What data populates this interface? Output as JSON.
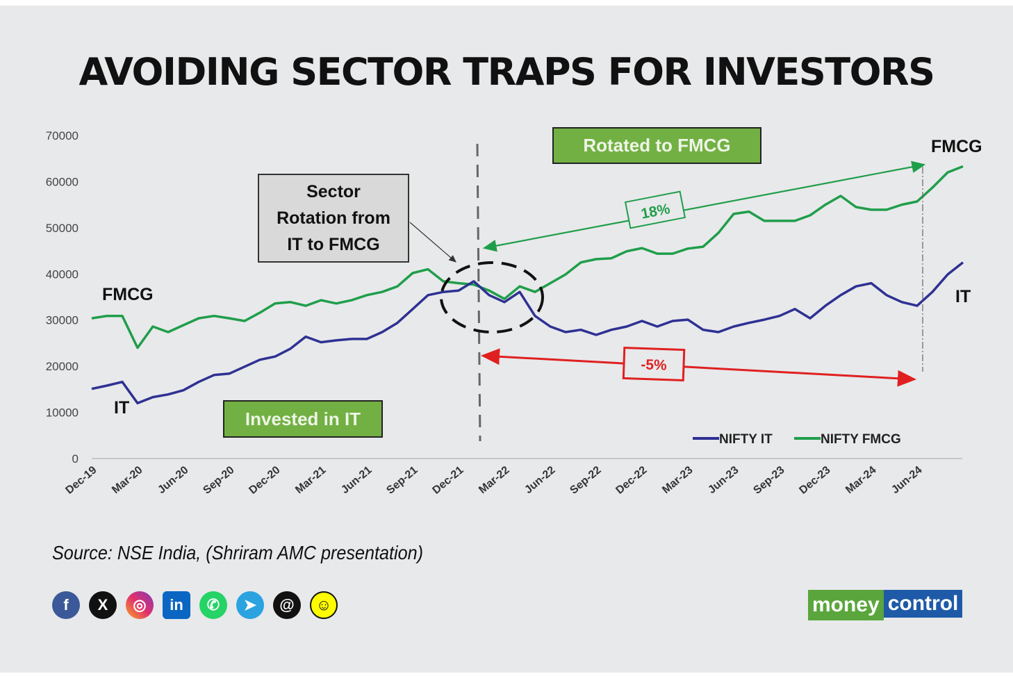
{
  "title": "AVOIDING SECTOR TRAPS FOR INVESTORS",
  "source": "Source: NSE India, (Shriram AMC presentation)",
  "brand": {
    "part1": "money",
    "part2": "control"
  },
  "social_icons": [
    "facebook-icon",
    "x-icon",
    "instagram-icon",
    "linkedin-icon",
    "whatsapp-icon",
    "telegram-icon",
    "threads-icon",
    "snapchat-icon"
  ],
  "annotations": {
    "rotated": "Rotated to FMCG",
    "invested": "Invested in IT",
    "rotation_box": [
      "Sector",
      "Rotation from",
      "IT to FMCG"
    ],
    "fmcg_gain": "18%",
    "it_loss": "-5%",
    "fmcg_left": "FMCG",
    "it_left": "IT",
    "fmcg_right": "FMCG",
    "it_right": "IT"
  },
  "chart_data": {
    "type": "line",
    "title": "AVOIDING SECTOR TRAPS FOR INVESTORS",
    "xlabel": "",
    "ylabel": "",
    "ylim": [
      0,
      70000
    ],
    "yticks": [
      0,
      10000,
      20000,
      30000,
      40000,
      50000,
      60000,
      70000
    ],
    "xtick_labels": [
      "Dec-19",
      "Mar-20",
      "Jun-20",
      "Sep-20",
      "Dec-20",
      "Mar-21",
      "Jun-21",
      "Sep-21",
      "Dec-21",
      "Mar-22",
      "Jun-22",
      "Sep-22",
      "Dec-22",
      "Mar-23",
      "Jun-23",
      "Sep-23",
      "Dec-23",
      "Mar-24",
      "Jun-24"
    ],
    "x": [
      "Dec-19",
      "Jan-20",
      "Feb-20",
      "Mar-20",
      "Apr-20",
      "May-20",
      "Jun-20",
      "Jul-20",
      "Aug-20",
      "Sep-20",
      "Oct-20",
      "Nov-20",
      "Dec-20",
      "Jan-21",
      "Feb-21",
      "Mar-21",
      "Apr-21",
      "May-21",
      "Jun-21",
      "Jul-21",
      "Aug-21",
      "Sep-21",
      "Oct-21",
      "Nov-21",
      "Dec-21",
      "Jan-22",
      "Feb-22",
      "Mar-22",
      "Apr-22",
      "May-22",
      "Jun-22",
      "Jul-22",
      "Aug-22",
      "Sep-22",
      "Oct-22",
      "Nov-22",
      "Dec-22",
      "Jan-23",
      "Feb-23",
      "Mar-23",
      "Apr-23",
      "May-23",
      "Jun-23",
      "Jul-23",
      "Aug-23",
      "Sep-23",
      "Oct-23",
      "Nov-23",
      "Dec-23",
      "Jan-24",
      "Feb-24",
      "Mar-24",
      "Apr-24",
      "May-24",
      "Jun-24",
      "Jul-24",
      "Aug-24",
      "Sep-24"
    ],
    "series": [
      {
        "name": "NIFTY IT",
        "color": "#2e3192",
        "values": [
          15100,
          15800,
          16600,
          12000,
          13300,
          13900,
          14800,
          16600,
          18100,
          18400,
          19900,
          21400,
          22100,
          23800,
          26400,
          25200,
          25600,
          25900,
          25900,
          27400,
          29400,
          32400,
          35400,
          36100,
          36400,
          38400,
          35400,
          33900,
          36100,
          30900,
          28600,
          27400,
          27900,
          26800,
          27900,
          28600,
          29800,
          28600,
          29800,
          30100,
          27900,
          27400,
          28600,
          29400,
          30100,
          30900,
          32400,
          30400,
          33100,
          35400,
          37300,
          38000,
          35400,
          33900,
          33100,
          36100,
          39900,
          42500
        ]
      },
      {
        "name": "NIFTY FMCG",
        "color": "#1f9e4a",
        "values": [
          30400,
          30900,
          30900,
          24000,
          28600,
          27400,
          28900,
          30400,
          30900,
          30400,
          29800,
          31600,
          33600,
          33900,
          33100,
          34300,
          33600,
          34300,
          35400,
          36100,
          37300,
          40200,
          41000,
          38400,
          38000,
          37700,
          36400,
          34600,
          37300,
          36100,
          38000,
          39900,
          42500,
          43200,
          43400,
          44900,
          45600,
          44400,
          44400,
          45500,
          45900,
          48900,
          53000,
          53500,
          51500,
          51500,
          51500,
          52700,
          55000,
          56900,
          54500,
          53900,
          53900,
          55000,
          55700,
          58700,
          62000,
          63300
        ]
      }
    ],
    "legend": "bottom-right",
    "markers": {
      "rotation_date": "Jan-22",
      "end_date": "Jun-24"
    },
    "grid": false
  }
}
